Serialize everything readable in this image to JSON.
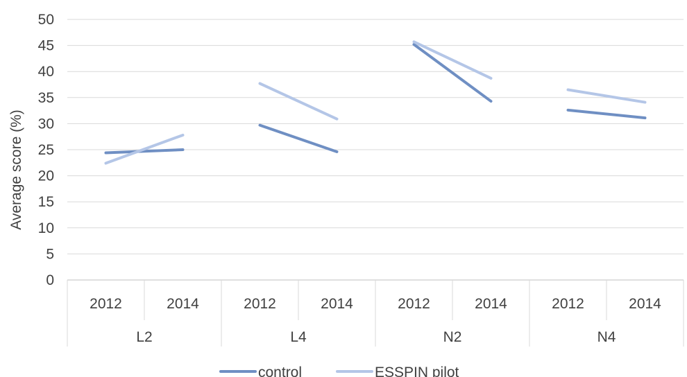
{
  "chart_data": {
    "type": "line",
    "ylabel": "Average score (%)",
    "ylim": [
      0,
      50
    ],
    "yticks": [
      0,
      5,
      10,
      15,
      20,
      25,
      30,
      35,
      40,
      45,
      50
    ],
    "groups": [
      "L2",
      "L4",
      "N2",
      "N4"
    ],
    "years": [
      "2012",
      "2014"
    ],
    "series": [
      {
        "name": "control",
        "color": "#6f8fc3",
        "values": [
          [
            24.4,
            25.0
          ],
          [
            29.7,
            24.6
          ],
          [
            45.2,
            34.3
          ],
          [
            32.6,
            31.1
          ]
        ]
      },
      {
        "name": "ESSPIN pilot",
        "color": "#b4c6e7",
        "values": [
          [
            22.4,
            27.8
          ],
          [
            37.7,
            30.9
          ],
          [
            45.7,
            38.7
          ],
          [
            36.5,
            34.1
          ]
        ]
      }
    ],
    "grid": true,
    "legend": "bottom"
  }
}
